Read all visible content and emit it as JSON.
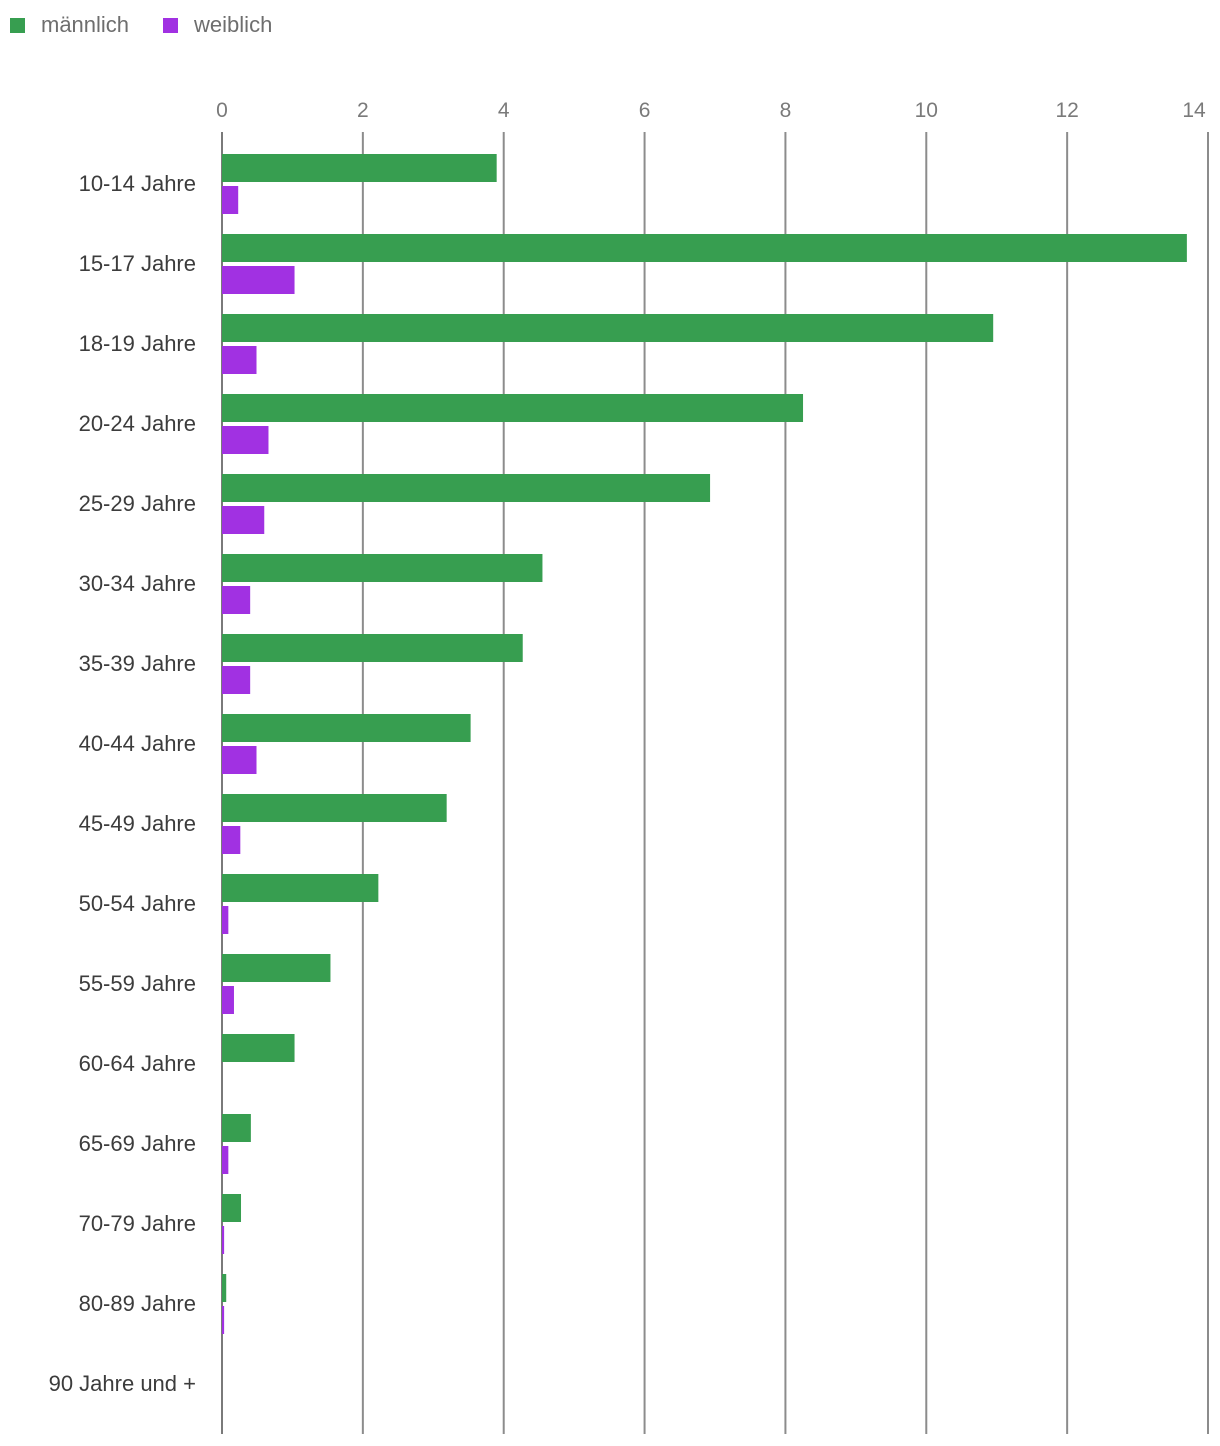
{
  "chart_data": {
    "type": "bar",
    "orientation": "horizontal",
    "title": "",
    "xlabel": "",
    "ylabel": "",
    "xlim": [
      0,
      14
    ],
    "x_ticks": [
      0,
      2,
      4,
      6,
      8,
      10,
      12,
      14
    ],
    "grid": true,
    "legend_position": "top-left",
    "categories": [
      "10-14 Jahre",
      "15-17 Jahre",
      "18-19 Jahre",
      "20-24 Jahre",
      "25-29 Jahre",
      "30-34 Jahre",
      "35-39 Jahre",
      "40-44 Jahre",
      "45-49 Jahre",
      "50-54 Jahre",
      "55-59 Jahre",
      "60-64 Jahre",
      "65-69 Jahre",
      "70-79 Jahre",
      "80-89 Jahre",
      "90 Jahre und +"
    ],
    "series": [
      {
        "name": "männlich",
        "color": "#379e50",
        "values": [
          3.9,
          13.7,
          10.95,
          8.25,
          6.93,
          4.55,
          4.27,
          3.53,
          3.19,
          2.22,
          1.54,
          1.03,
          0.41,
          0.27,
          0.06,
          0.0
        ]
      },
      {
        "name": "weiblich",
        "color": "#a131e2",
        "values": [
          0.23,
          1.03,
          0.49,
          0.66,
          0.6,
          0.4,
          0.4,
          0.49,
          0.26,
          0.09,
          0.17,
          0.0,
          0.09,
          0.03,
          0.03,
          0.0
        ]
      }
    ]
  }
}
